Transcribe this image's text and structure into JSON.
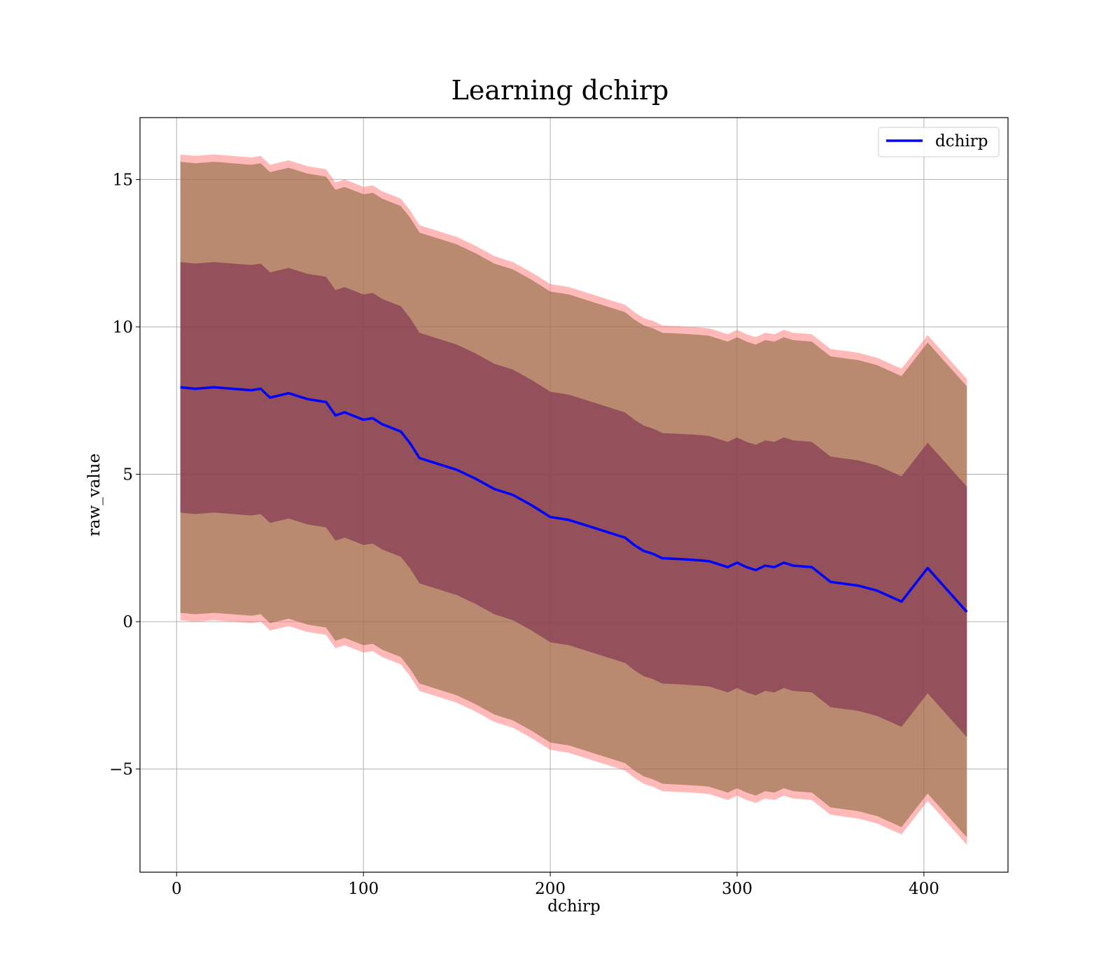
{
  "chart_data": {
    "type": "line",
    "title": "Learning dchirp",
    "xlabel": "dchirp",
    "ylabel": "raw_value",
    "xlim": [
      -19.6,
      445
    ],
    "ylim": [
      -8.5,
      17.1
    ],
    "grid": true,
    "legend_position": "upper right",
    "x_ticks": [
      {
        "value": 0,
        "label": "0"
      },
      {
        "value": 100,
        "label": "100"
      },
      {
        "value": 200,
        "label": "200"
      },
      {
        "value": 300,
        "label": "300"
      },
      {
        "value": 400,
        "label": "400"
      }
    ],
    "y_ticks": [
      {
        "value": -5,
        "label": "−5"
      },
      {
        "value": 0,
        "label": "0"
      },
      {
        "value": 5,
        "label": "5"
      },
      {
        "value": 10,
        "label": "10"
      },
      {
        "value": 15,
        "label": "15"
      }
    ],
    "series": [
      {
        "name": "dchirp",
        "color": "#0000ff",
        "x": [
          2,
          10,
          20,
          30,
          40,
          45,
          50,
          60,
          70,
          80,
          85,
          90,
          100,
          105,
          110,
          120,
          125,
          130,
          140,
          150,
          160,
          170,
          180,
          190,
          200,
          210,
          220,
          230,
          240,
          245,
          250,
          255,
          260,
          270,
          280,
          285,
          290,
          295,
          300,
          305,
          310,
          315,
          320,
          325,
          330,
          340,
          350,
          365,
          375,
          388,
          402,
          423
        ],
        "y": [
          7.95,
          7.9,
          7.95,
          7.9,
          7.85,
          7.9,
          7.6,
          7.75,
          7.55,
          7.45,
          7.0,
          7.1,
          6.85,
          6.9,
          6.7,
          6.45,
          6.05,
          5.55,
          5.35,
          5.15,
          4.85,
          4.5,
          4.3,
          3.95,
          3.55,
          3.45,
          3.25,
          3.05,
          2.85,
          2.6,
          2.4,
          2.3,
          2.15,
          2.12,
          2.08,
          2.05,
          1.95,
          1.85,
          2.0,
          1.85,
          1.75,
          1.9,
          1.85,
          2.0,
          1.9,
          1.85,
          1.35,
          1.22,
          1.05,
          0.68,
          1.82,
          0.33
        ]
      }
    ],
    "bands": [
      {
        "color": "#ff7f7f",
        "upper": [
          15.85,
          15.8,
          15.85,
          15.8,
          15.75,
          15.8,
          15.5,
          15.65,
          15.45,
          15.35,
          14.9,
          15.0,
          14.75,
          14.8,
          14.6,
          14.35,
          13.95,
          13.45,
          13.25,
          13.05,
          12.75,
          12.4,
          12.2,
          11.85,
          11.45,
          11.35,
          11.15,
          10.95,
          10.75,
          10.5,
          10.3,
          10.2,
          10.05,
          10.02,
          9.98,
          9.95,
          9.85,
          9.75,
          9.9,
          9.75,
          9.65,
          9.8,
          9.75,
          9.9,
          9.8,
          9.75,
          9.25,
          9.12,
          8.95,
          8.58,
          9.72,
          8.23
        ],
        "lower": [
          0.05,
          0.0,
          0.05,
          0.0,
          -0.05,
          0.0,
          -0.3,
          -0.15,
          -0.35,
          -0.45,
          -0.9,
          -0.8,
          -1.05,
          -1.0,
          -1.2,
          -1.45,
          -1.85,
          -2.35,
          -2.55,
          -2.75,
          -3.05,
          -3.4,
          -3.6,
          -3.95,
          -4.35,
          -4.45,
          -4.65,
          -4.85,
          -5.05,
          -5.3,
          -5.5,
          -5.6,
          -5.75,
          -5.78,
          -5.82,
          -5.85,
          -5.95,
          -6.05,
          -5.9,
          -6.05,
          -6.15,
          -6.0,
          -6.05,
          -5.9,
          -6.0,
          -6.05,
          -6.55,
          -6.68,
          -6.85,
          -7.22,
          -6.08,
          -7.57
        ]
      },
      {
        "color": "#8b6b3d",
        "upper": [
          15.6,
          15.55,
          15.6,
          15.55,
          15.5,
          15.55,
          15.25,
          15.4,
          15.2,
          15.1,
          14.65,
          14.75,
          14.5,
          14.55,
          14.35,
          14.1,
          13.7,
          13.2,
          13.0,
          12.8,
          12.5,
          12.15,
          11.95,
          11.6,
          11.2,
          11.1,
          10.9,
          10.7,
          10.5,
          10.25,
          10.05,
          9.95,
          9.8,
          9.77,
          9.73,
          9.7,
          9.6,
          9.5,
          9.65,
          9.5,
          9.4,
          9.55,
          9.5,
          9.65,
          9.55,
          9.5,
          9.0,
          8.87,
          8.7,
          8.33,
          9.47,
          7.98
        ],
        "lower": [
          0.3,
          0.25,
          0.3,
          0.25,
          0.2,
          0.25,
          -0.05,
          0.1,
          -0.1,
          -0.2,
          -0.65,
          -0.55,
          -0.8,
          -0.75,
          -0.95,
          -1.2,
          -1.6,
          -2.1,
          -2.3,
          -2.5,
          -2.8,
          -3.15,
          -3.35,
          -3.7,
          -4.1,
          -4.2,
          -4.4,
          -4.6,
          -4.8,
          -5.05,
          -5.25,
          -5.35,
          -5.5,
          -5.53,
          -5.57,
          -5.6,
          -5.7,
          -5.8,
          -5.65,
          -5.8,
          -5.9,
          -5.75,
          -5.8,
          -5.65,
          -5.75,
          -5.8,
          -6.3,
          -6.43,
          -6.6,
          -6.97,
          -5.83,
          -7.32
        ]
      },
      {
        "color": "#7b2c4e",
        "upper": [
          12.2,
          12.15,
          12.2,
          12.15,
          12.1,
          12.15,
          11.85,
          12.0,
          11.8,
          11.7,
          11.25,
          11.35,
          11.1,
          11.15,
          10.95,
          10.7,
          10.3,
          9.8,
          9.6,
          9.4,
          9.1,
          8.75,
          8.55,
          8.2,
          7.8,
          7.7,
          7.5,
          7.3,
          7.1,
          6.85,
          6.65,
          6.55,
          6.4,
          6.37,
          6.33,
          6.3,
          6.2,
          6.1,
          6.25,
          6.1,
          6.0,
          6.15,
          6.1,
          6.25,
          6.15,
          6.1,
          5.6,
          5.47,
          5.3,
          4.93,
          6.07,
          4.58
        ],
        "lower": [
          3.7,
          3.65,
          3.7,
          3.65,
          3.6,
          3.65,
          3.35,
          3.5,
          3.3,
          3.2,
          2.75,
          2.85,
          2.6,
          2.65,
          2.45,
          2.2,
          1.8,
          1.3,
          1.1,
          0.9,
          0.6,
          0.25,
          0.05,
          -0.3,
          -0.7,
          -0.8,
          -1.0,
          -1.2,
          -1.4,
          -1.65,
          -1.85,
          -1.95,
          -2.1,
          -2.13,
          -2.17,
          -2.2,
          -2.3,
          -2.4,
          -2.25,
          -2.4,
          -2.5,
          -2.35,
          -2.4,
          -2.25,
          -2.35,
          -2.4,
          -2.9,
          -3.03,
          -3.2,
          -3.57,
          -2.43,
          -3.92
        ]
      }
    ]
  }
}
